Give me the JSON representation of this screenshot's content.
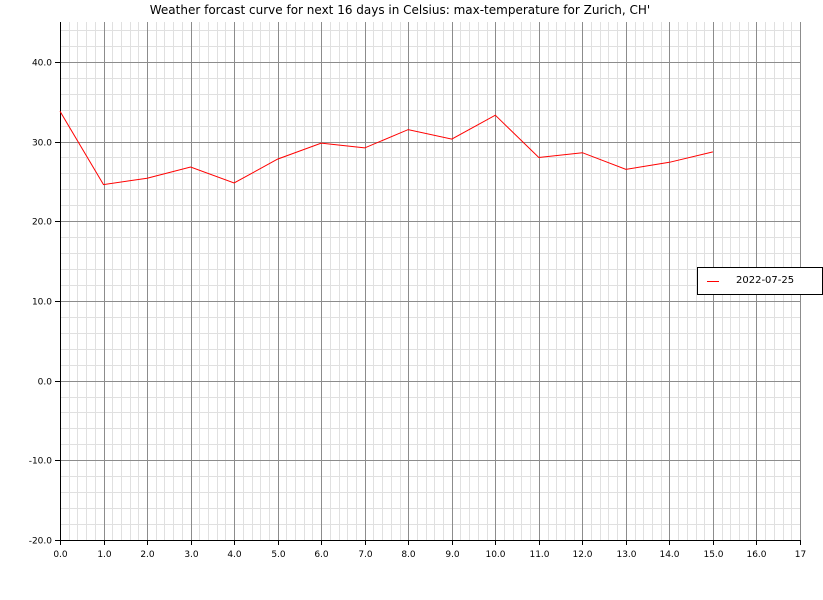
{
  "title": "Weather forcast curve for next 16 days in Celsius: max-temperature for Zurich, CH'",
  "colors": {
    "series": "#ff0000",
    "grid_major": "#8c8c8c",
    "grid_minor": "#e0e0e0",
    "axis": "#000000"
  },
  "chart_data": {
    "type": "line",
    "title": "Weather forcast curve for next 16 days in Celsius: max-temperature for Zurich, CH'",
    "xlabel": "",
    "ylabel": "",
    "xlim": [
      0,
      17
    ],
    "ylim": [
      -20,
      45
    ],
    "x_ticks": [
      0,
      1,
      2,
      3,
      4,
      5,
      6,
      7,
      8,
      9,
      10,
      11,
      12,
      13,
      14,
      15,
      16,
      17
    ],
    "x_tick_labels": [
      "0.0",
      "1.0",
      "2.0",
      "3.0",
      "4.0",
      "5.0",
      "6.0",
      "7.0",
      "8.0",
      "9.0",
      "10.0",
      "11.0",
      "12.0",
      "13.0",
      "14.0",
      "15.0",
      "16.0",
      "17"
    ],
    "y_ticks": [
      -20,
      -10,
      0,
      10,
      20,
      30,
      40
    ],
    "y_tick_labels": [
      "-20.0",
      "-10.0",
      "0.0",
      "10.0",
      "20.0",
      "30.0",
      "40.0"
    ],
    "grid": true,
    "legend_position": "right",
    "series": [
      {
        "name": "2022-07-25",
        "color": "#ff0000",
        "x": [
          0,
          1,
          2,
          3,
          4,
          5,
          6,
          7,
          8,
          9,
          10,
          11,
          12,
          13,
          14,
          15
        ],
        "y": [
          33.8,
          24.6,
          25.4,
          26.8,
          24.8,
          27.8,
          29.8,
          29.2,
          31.5,
          30.3,
          33.3,
          28.0,
          28.6,
          26.5,
          27.4,
          28.7
        ]
      }
    ]
  }
}
